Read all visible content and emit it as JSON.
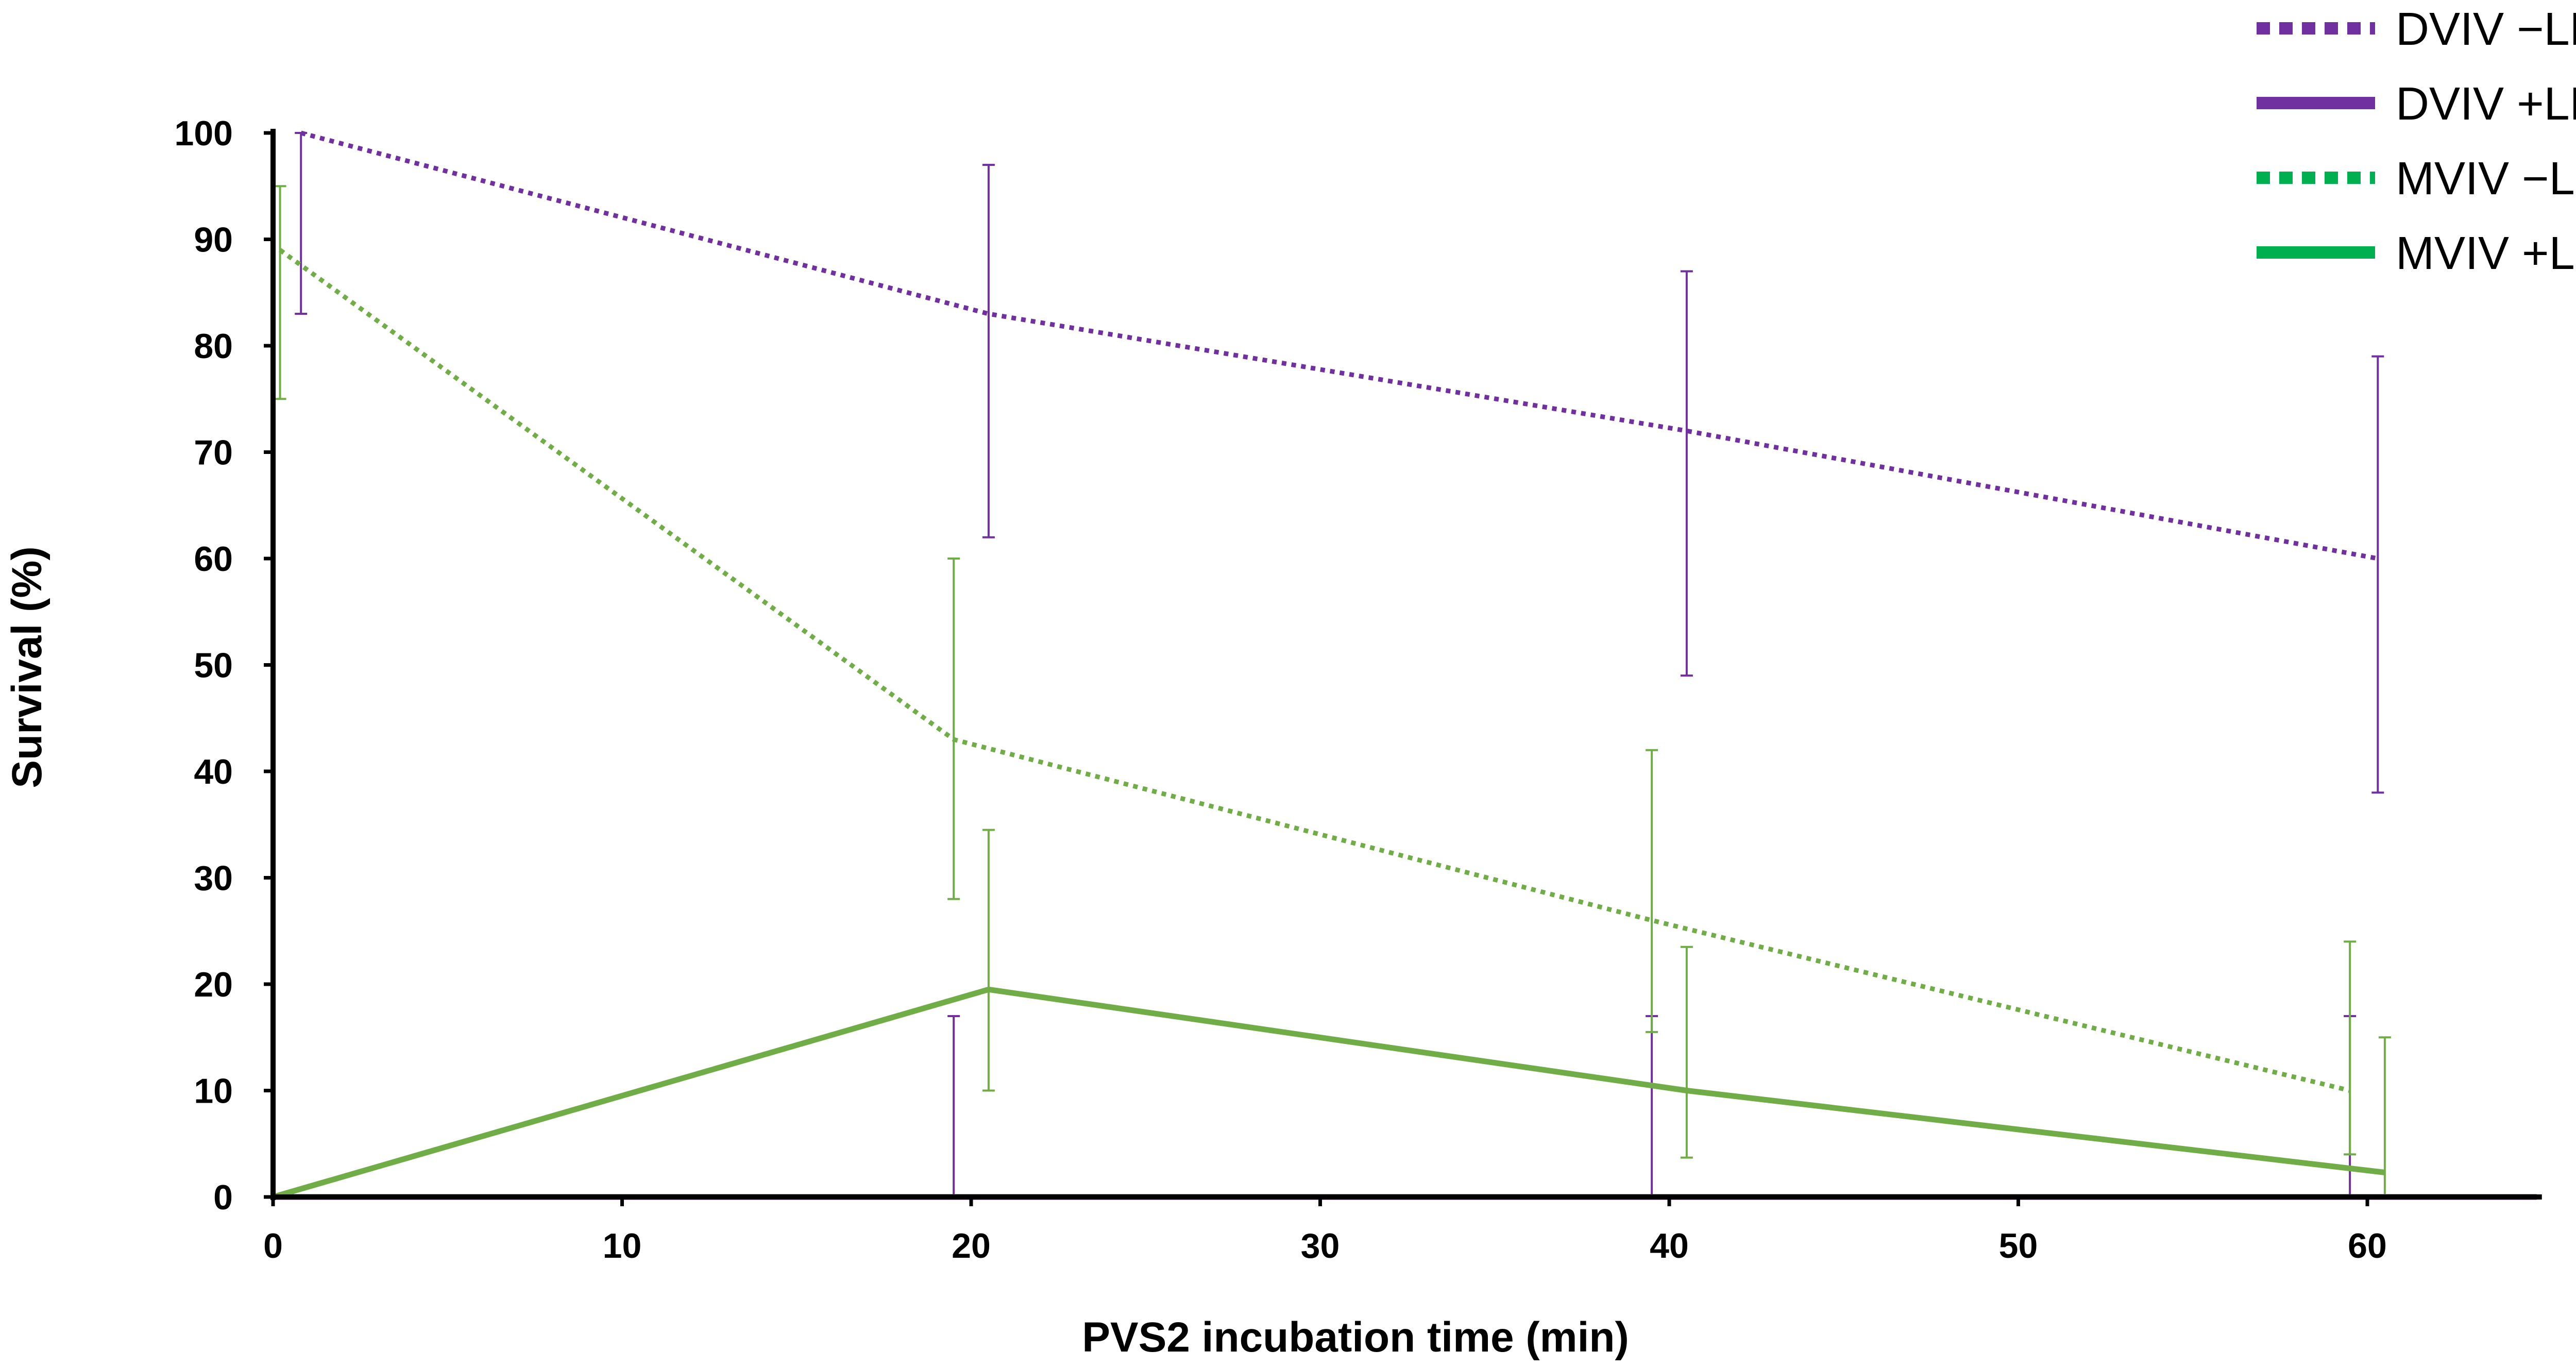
{
  "chart_data": {
    "type": "line",
    "title": "",
    "xlabel": "PVS2 incubation time (min)",
    "ylabel": "Survival (%)",
    "xlim": [
      0,
      65
    ],
    "ylim": [
      0,
      100
    ],
    "xticks": [
      0,
      10,
      20,
      30,
      40,
      50,
      60
    ],
    "yticks": [
      0,
      10,
      20,
      30,
      40,
      50,
      60,
      70,
      80,
      90,
      100
    ],
    "legend_position": "top-right",
    "series": [
      {
        "name": "DVIV −LN",
        "color": "#7030a0",
        "style": "dotted",
        "x": [
          0.8,
          20.5,
          40.5,
          60.3
        ],
        "y": [
          100,
          83,
          72,
          60
        ],
        "err_low": [
          83,
          62,
          49,
          38
        ],
        "err_high": [
          100,
          97,
          87,
          79
        ]
      },
      {
        "name": "DVIV +LN",
        "color": "#7030a0",
        "style": "solid",
        "x": [
          0,
          19.5,
          39.5,
          59.5
        ],
        "y": [
          0,
          0,
          0,
          0
        ],
        "err_low": [
          0,
          0,
          0,
          0
        ],
        "err_high": [
          0,
          17,
          17,
          17
        ]
      },
      {
        "name": "MVIV −LN",
        "color": "#70ad47",
        "legend_color": "#00b050",
        "style": "dotted",
        "x": [
          0.2,
          19.5,
          39.5,
          59.5
        ],
        "y": [
          89,
          43,
          26,
          10
        ],
        "err_low": [
          75,
          28,
          15.5,
          4
        ],
        "err_high": [
          95,
          60,
          42,
          24
        ]
      },
      {
        "name": "MVIV +LN",
        "color": "#70ad47",
        "legend_color": "#00b050",
        "style": "solid",
        "x": [
          0,
          20.5,
          40.5,
          60.5
        ],
        "y": [
          0,
          19.5,
          10,
          2.3
        ],
        "err_low": [
          0,
          10,
          3.7,
          0
        ],
        "err_high": [
          0,
          34.5,
          23.5,
          15
        ]
      }
    ]
  }
}
